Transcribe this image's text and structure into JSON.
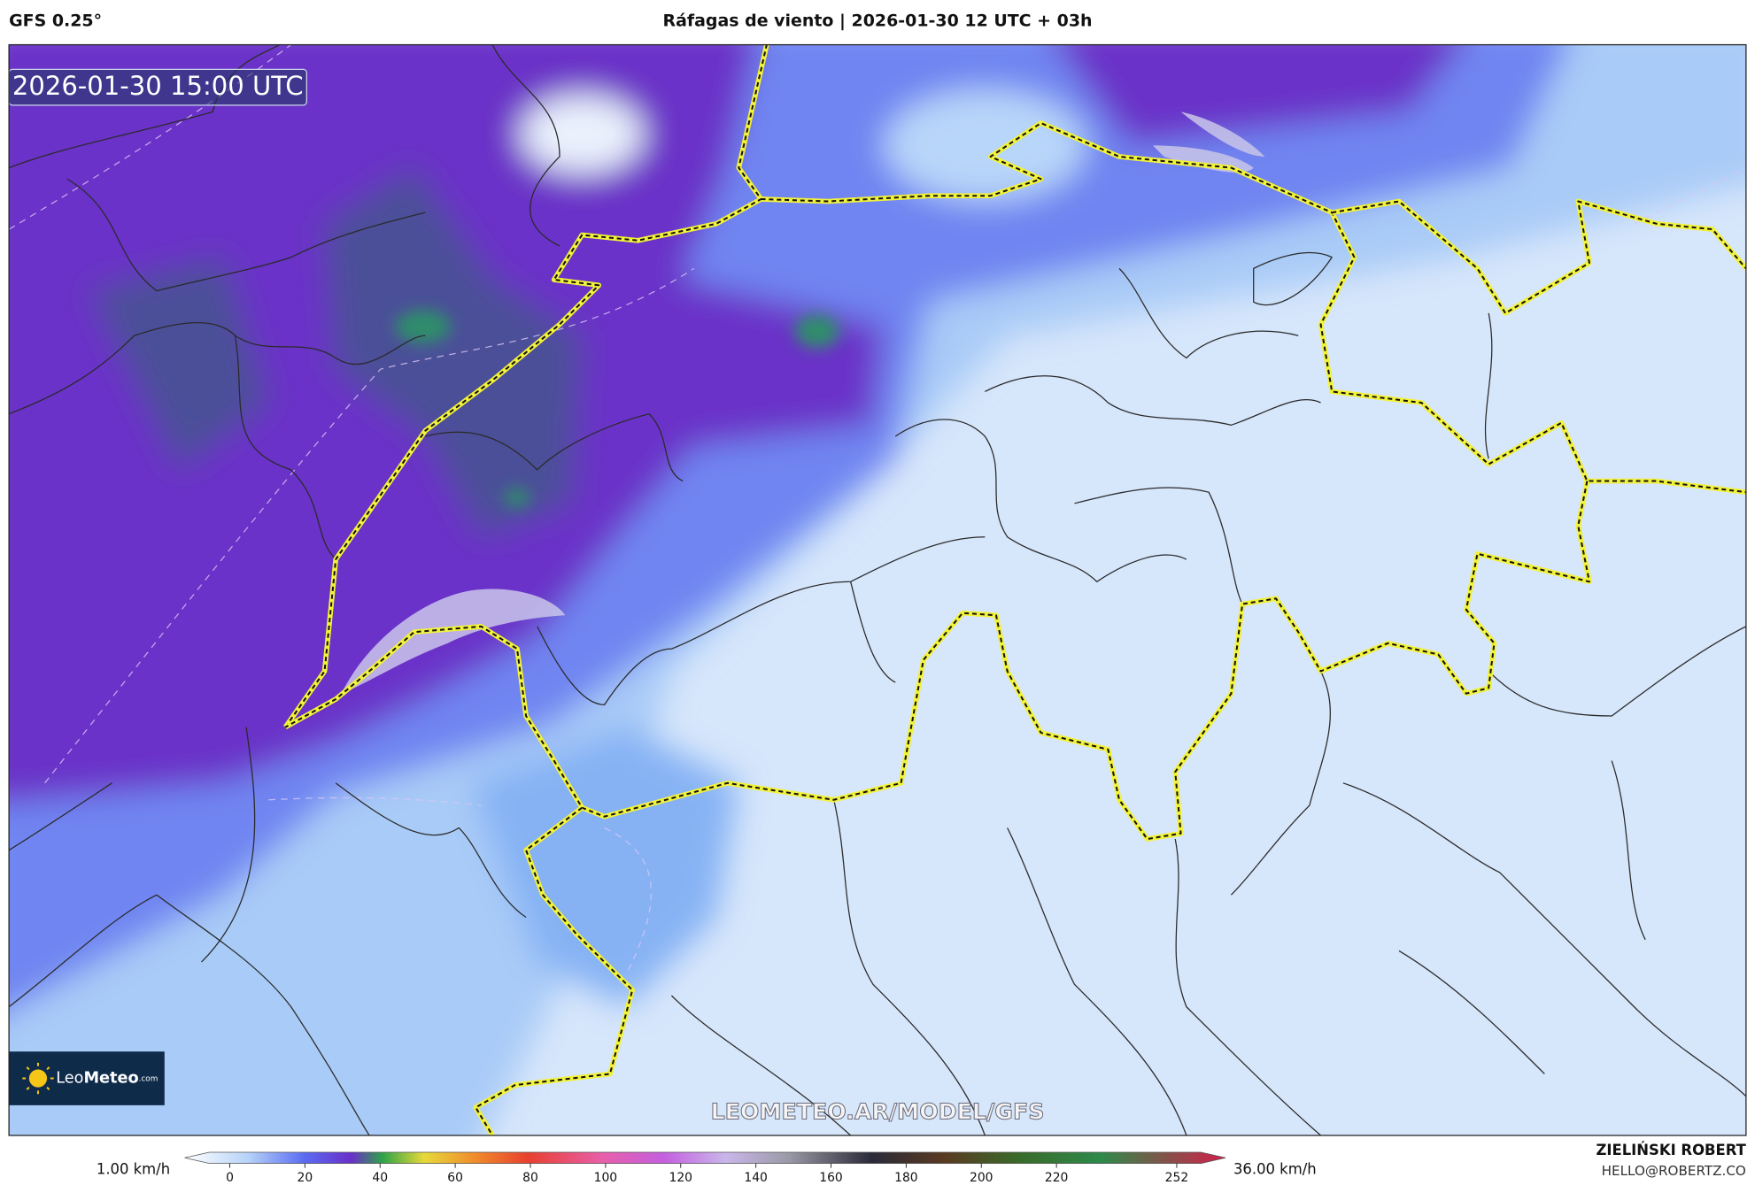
{
  "header": {
    "model": "GFS 0.25°",
    "title": "Ráfagas de viento | 2026-01-30 12 UTC + 03h"
  },
  "map": {
    "timestamp": "2026-01-30 15:00 UTC",
    "logo": {
      "name_light": "Leo",
      "name_bold": "Meteo",
      "suffix": ".com"
    },
    "watermark": "LEOMETEO.AR/MODEL/GFS"
  },
  "colorbar": {
    "min_label": "1.00 km/h",
    "max_label": "36.00 km/h",
    "range": [
      -12,
      265
    ],
    "ticks": [
      0,
      20,
      40,
      60,
      80,
      100,
      120,
      140,
      160,
      180,
      200,
      220,
      252
    ]
  },
  "credits": {
    "author": "ZIELIŃSKI ROBERT",
    "email": "HELLO@ROBERTZ.CO"
  }
}
